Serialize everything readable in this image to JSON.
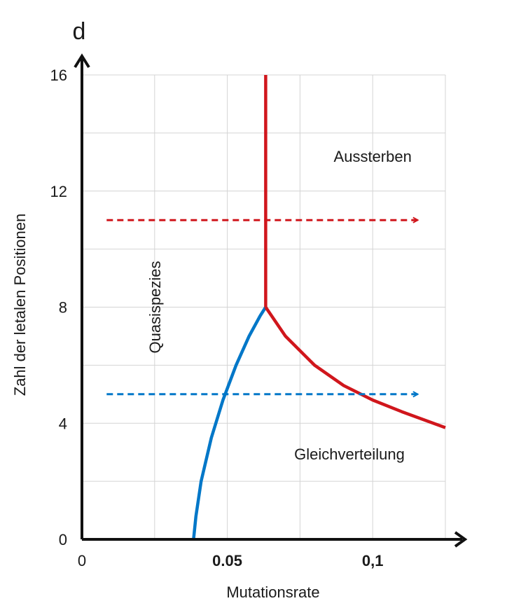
{
  "chart_data": {
    "type": "line",
    "xlabel": "Mutationsrate",
    "ylabel": "Zahl der letalen Positionen",
    "y_axis_letter": "d",
    "xlim": [
      0,
      0.125
    ],
    "ylim": [
      0,
      16
    ],
    "x_ticks": [
      {
        "value": 0,
        "label": "0",
        "bold": false
      },
      {
        "value": 0.05,
        "label": "0.05",
        "bold": true
      },
      {
        "value": 0.1,
        "label": "0,1",
        "bold": true
      }
    ],
    "y_ticks": [
      {
        "value": 0,
        "label": "0"
      },
      {
        "value": 4,
        "label": "4"
      },
      {
        "value": 8,
        "label": "8"
      },
      {
        "value": 12,
        "label": "12"
      },
      {
        "value": 16,
        "label": "16"
      }
    ],
    "grid": {
      "x_step": 0.025,
      "y_step": 2,
      "visible": true
    },
    "series": [
      {
        "color": "#0077c8",
        "style": "solid",
        "points": [
          [
            0.0384,
            0
          ],
          [
            0.0392,
            0.8
          ],
          [
            0.041,
            2.0
          ],
          [
            0.0445,
            3.5
          ],
          [
            0.0485,
            4.8
          ],
          [
            0.053,
            6.0
          ],
          [
            0.0575,
            7.0
          ],
          [
            0.0613,
            7.7
          ],
          [
            0.0632,
            8.0
          ]
        ]
      },
      {
        "color": "#d0161c",
        "style": "solid",
        "points": [
          [
            0.0632,
            8.0
          ],
          [
            0.0632,
            16.0
          ]
        ]
      },
      {
        "color": "#d0161c",
        "style": "solid",
        "points": [
          [
            0.0632,
            8.0
          ],
          [
            0.07,
            7.0
          ],
          [
            0.08,
            6.0
          ],
          [
            0.09,
            5.3
          ],
          [
            0.1,
            4.8
          ],
          [
            0.11,
            4.4
          ],
          [
            0.125,
            3.85
          ]
        ]
      },
      {
        "color": "#d0161c",
        "style": "dashed-arrow",
        "points": [
          [
            0.0085,
            11.0
          ],
          [
            0.1155,
            11.0
          ]
        ]
      },
      {
        "color": "#0077c8",
        "style": "dashed-arrow",
        "points": [
          [
            0.0085,
            5.0
          ],
          [
            0.1155,
            5.0
          ]
        ]
      }
    ],
    "annotations": [
      {
        "text": "Aussterben",
        "x": 0.1,
        "y": 13.2,
        "rotate": false
      },
      {
        "text": "Gleichverteilung",
        "x": 0.092,
        "y": 2.95,
        "rotate": false
      },
      {
        "text": "Quasispezies",
        "x": 0.025,
        "y": 8.0,
        "rotate": true
      }
    ]
  }
}
